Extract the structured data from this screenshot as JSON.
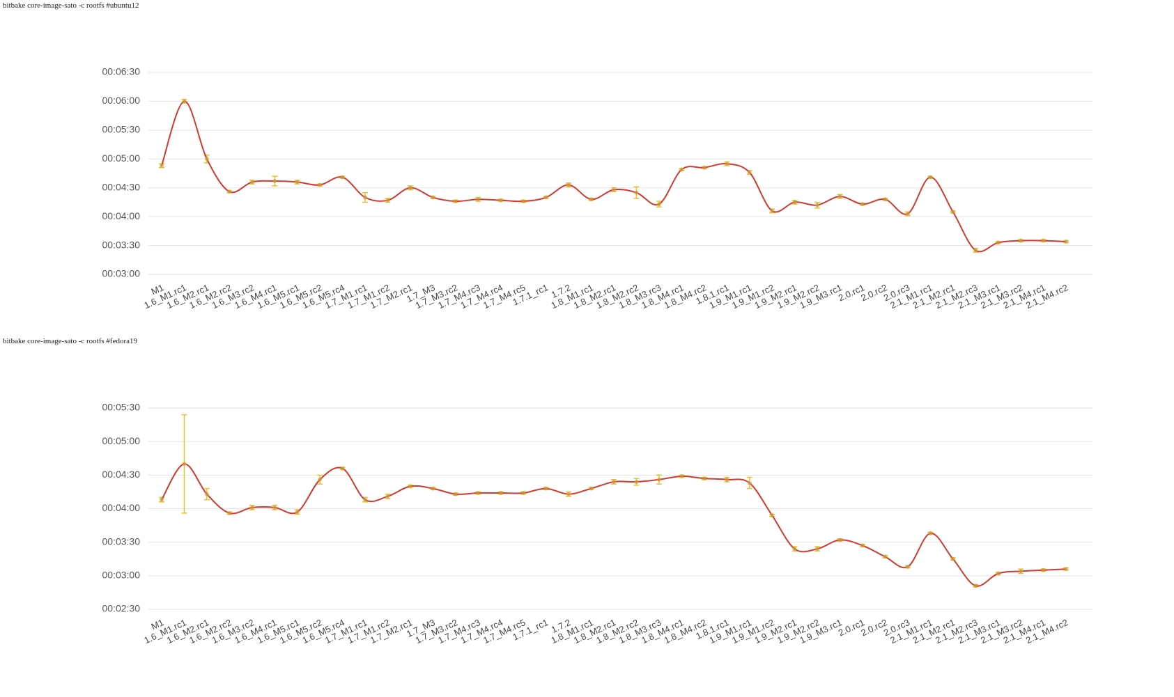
{
  "chart_data": [
    {
      "type": "line",
      "title": "bitbake core-image-sato -c rootfs #ubuntu12",
      "categories": [
        "M1",
        "1.6_M1.rc1",
        "1.6_M2.rc1",
        "1.6_M2.rc2",
        "1.6_M3.rc2",
        "1.6_M4.rc1",
        "1.6_M5.rc1",
        "1.6_M5.rc2",
        "1.6_M5.rc4",
        "1.7_M1.rc1",
        "1.7_M1.rc2",
        "1.7_M2.rc1",
        "1.7_M3",
        "1.7_M3.rc2",
        "1.7_M4.rc3",
        "1.7_M4.rc4",
        "1.7_M4.rc5",
        "1.7.1_rc1",
        "1.7.2",
        "1.8_M1.rc1",
        "1.8_M2.rc1",
        "1.8_M2.rc2",
        "1.8_M3.rc3",
        "1.8_M4.rc1",
        "1.8_M4.rc2",
        "1.8.1.rc1",
        "1.9_M1.rc1",
        "1.9_M1.rc2",
        "1.9_M2.rc1",
        "1.9_M2.rc2",
        "1.9_M3.rc1",
        "2.0.rc1",
        "2.0.rc2",
        "2.0.rc3",
        "2.1_M1.rc1",
        "2.1_M2.rc1",
        "2.1_M2.rc3",
        "2.1_M3.rc1",
        "2.1_M3.rc2",
        "2.1_M4.rc1",
        "2.1_M4.rc2"
      ],
      "values": [
        293,
        360,
        300,
        266,
        276,
        277,
        276,
        273,
        281,
        260,
        257,
        270,
        260,
        256,
        258,
        257,
        256,
        260,
        273,
        258,
        268,
        265,
        253,
        289,
        291,
        295,
        286,
        246,
        255,
        252,
        261,
        253,
        258,
        243,
        281,
        245,
        205,
        213,
        215,
        215,
        214
      ],
      "errors": [
        2,
        2,
        4,
        1,
        2,
        5,
        2,
        1,
        1,
        5,
        2,
        2,
        1,
        1,
        2,
        1,
        1,
        1,
        2,
        1,
        2,
        6,
        3,
        1,
        1,
        2,
        2,
        2,
        2,
        3,
        2,
        1,
        1,
        2,
        1,
        1,
        2,
        1,
        1,
        1,
        1
      ],
      "color": "#d03a2e",
      "error_color": "#e8c030",
      "ylim": [
        180,
        390
      ],
      "yticks": [
        {
          "value": 180,
          "label": "00:03:00"
        },
        {
          "value": 210,
          "label": "00:03:30"
        },
        {
          "value": 240,
          "label": "00:04:00"
        },
        {
          "value": 270,
          "label": "00:04:30"
        },
        {
          "value": 300,
          "label": "00:05:00"
        },
        {
          "value": 330,
          "label": "00:05:30"
        },
        {
          "value": 360,
          "label": "00:06:00"
        },
        {
          "value": 390,
          "label": "00:06:30"
        }
      ],
      "grid": true
    },
    {
      "type": "line",
      "title": "bitbake core-image-sato -c rootfs #fedora19",
      "categories": [
        "M1",
        "1.6_M1.rc1",
        "1.6_M2.rc1",
        "1.6_M2.rc2",
        "1.6_M3.rc2",
        "1.6_M4.rc1",
        "1.6_M5.rc1",
        "1.6_M5.rc2",
        "1.6_M5.rc4",
        "1.7_M1.rc1",
        "1.7_M1.rc2",
        "1.7_M2.rc1",
        "1.7_M3",
        "1.7_M3.rc2",
        "1.7_M4.rc3",
        "1.7_M4.rc4",
        "1.7_M4.rc5",
        "1.7.1_rc1",
        "1.7.2",
        "1.8_M1.rc1",
        "1.8_M2.rc1",
        "1.8_M2.rc2",
        "1.8_M3.rc3",
        "1.8_M4.rc1",
        "1.8_M4.rc2",
        "1.8.1.rc1",
        "1.9_M1.rc1",
        "1.9_M1.rc2",
        "1.9_M2.rc1",
        "1.9_M2.rc2",
        "1.9_M3.rc1",
        "2.0.rc1",
        "2.0.rc2",
        "2.0.rc3",
        "2.1_M1.rc1",
        "2.1_M2.rc1",
        "2.1_M2.rc3",
        "2.1_M3.rc1",
        "2.1_M3.rc2",
        "2.1_M4.rc1",
        "2.1_M4.rc2"
      ],
      "values": [
        248,
        280,
        253,
        236,
        241,
        241,
        237,
        266,
        276,
        248,
        251,
        260,
        258,
        253,
        254,
        254,
        254,
        258,
        253,
        258,
        264,
        264,
        266,
        269,
        267,
        266,
        263,
        234,
        204,
        204,
        212,
        207,
        197,
        188,
        218,
        195,
        171,
        182,
        184,
        185,
        186
      ],
      "errors": [
        2,
        44,
        5,
        1,
        2,
        2,
        2,
        4,
        1,
        2,
        2,
        1,
        1,
        1,
        1,
        1,
        1,
        1,
        2,
        1,
        2,
        3,
        4,
        1,
        1,
        2,
        5,
        1,
        2,
        2,
        1,
        1,
        1,
        1,
        1,
        1,
        1,
        1,
        2,
        1,
        1
      ],
      "color": "#d03a2e",
      "error_color": "#e8c030",
      "ylim": [
        150,
        330
      ],
      "yticks": [
        {
          "value": 150,
          "label": "00:02:30"
        },
        {
          "value": 180,
          "label": "00:03:00"
        },
        {
          "value": 210,
          "label": "00:03:30"
        },
        {
          "value": 240,
          "label": "00:04:00"
        },
        {
          "value": 270,
          "label": "00:04:30"
        },
        {
          "value": 300,
          "label": "00:05:00"
        },
        {
          "value": 330,
          "label": "00:05:30"
        }
      ],
      "grid": true
    }
  ]
}
